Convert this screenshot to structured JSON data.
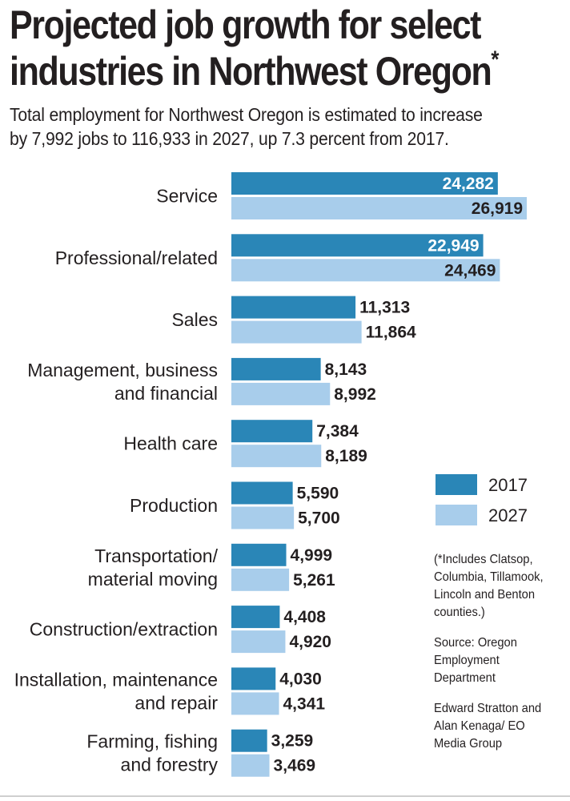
{
  "title_line1": "Projected job growth for select",
  "title_line2": "industries in Northwest Oregon",
  "title_mark": "*",
  "subtitle_line1": "Total employment for Northwest Oregon is estimated to increase",
  "subtitle_line2": "by 7,992 jobs to 116,933 in 2027, up 7.3 percent from 2017.",
  "legend": {
    "label_2017": "2017",
    "label_2027": "2027"
  },
  "footnote": "(*Includes Clatsop, Columbia, Tillamook, Lincoln and Benton counties.)",
  "source": "Source: Oregon Employment Department",
  "credit": "Edward Stratton and Alan Kenaga/ EO Media Group",
  "colors": {
    "bar_2017": "#2a86b7",
    "bar_2027": "#a8cdeb",
    "text": "#231f20",
    "inbar_text": "#ffffff"
  },
  "chart_data": {
    "type": "bar",
    "orientation": "horizontal",
    "categories": [
      [
        "Service"
      ],
      [
        "Professional/related"
      ],
      [
        "Sales"
      ],
      [
        "Management, business",
        "and financial"
      ],
      [
        "Health care"
      ],
      [
        "Production"
      ],
      [
        "Transportation/",
        "material moving"
      ],
      [
        "Construction/extraction"
      ],
      [
        "Installation, maintenance",
        "and repair"
      ],
      [
        "Farming, fishing",
        "and forestry"
      ]
    ],
    "series": [
      {
        "name": "2017",
        "values": [
          24282,
          22949,
          11313,
          8143,
          7384,
          5590,
          4999,
          4408,
          4030,
          3259
        ],
        "labels": [
          "24,282",
          "22,949",
          "11,313",
          "8,143",
          "7,384",
          "5,590",
          "4,999",
          "4,408",
          "4,030",
          "3,259"
        ]
      },
      {
        "name": "2027",
        "values": [
          26919,
          24469,
          11864,
          8992,
          8189,
          5700,
          5261,
          4920,
          4341,
          3469
        ],
        "labels": [
          "26,919",
          "24,469",
          "11,864",
          "8,992",
          "8,189",
          "5,700",
          "5,261",
          "4,920",
          "4,341",
          "3,469"
        ]
      }
    ],
    "legend_position": "right",
    "grid": false
  }
}
